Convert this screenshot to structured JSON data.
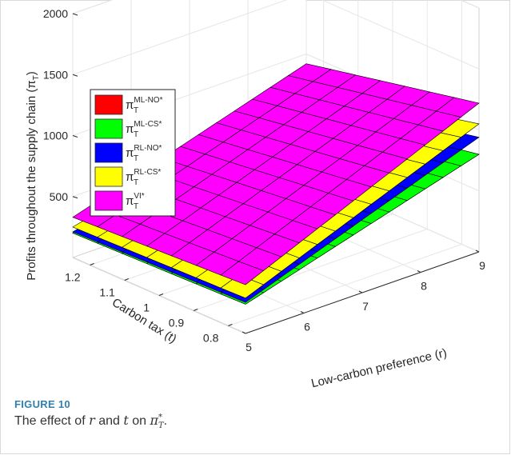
{
  "chart_data": {
    "type": "surface",
    "xlabel": "Low-carbon preference (r)",
    "ylabel": "Carbon tax (t)",
    "zlabel": "Profits throughout the supply chain (π",
    "zlabel_sub": "T",
    "x_ticks": [
      5,
      6,
      7,
      8,
      9
    ],
    "y_ticks": [
      0.8,
      0.9,
      1,
      1.1,
      1.2
    ],
    "z_ticks": [
      500,
      1000,
      1500,
      2000
    ],
    "xlim": [
      5,
      9
    ],
    "ylim": [
      0.75,
      1.25
    ],
    "zlim": [
      0,
      2000
    ],
    "grid": true,
    "legend_position": "top-left",
    "series": [
      {
        "name": "π",
        "sup": "ML-NO*",
        "sub": "T",
        "color": "#ff0000",
        "z_corners": {
          "r5_t1.25": 200,
          "r5_t0.75": 240,
          "r9_t1.25": 530,
          "r9_t0.75": 800
        }
      },
      {
        "name": "π",
        "sup": "ML-CS*",
        "sub": "T",
        "color": "#00ff00",
        "z_corners": {
          "r5_t1.25": 200,
          "r5_t0.75": 240,
          "r9_t1.25": 530,
          "r9_t0.75": 800
        }
      },
      {
        "name": "π",
        "sup": "RL-NO*",
        "sub": "T",
        "color": "#0000ff",
        "z_corners": {
          "r5_t1.25": 210,
          "r5_t0.75": 255,
          "r9_t1.25": 640,
          "r9_t0.75": 940
        }
      },
      {
        "name": "π",
        "sup": "RL-CS*",
        "sub": "T",
        "color": "#ffff00",
        "z_corners": {
          "r5_t1.25": 250,
          "r5_t0.75": 290,
          "r9_t1.25": 720,
          "r9_t0.75": 1050
        }
      },
      {
        "name": "π",
        "sup": "VI*",
        "sub": "T",
        "color": "#ff00ff",
        "z_corners": {
          "r5_t1.25": 330,
          "r5_t0.75": 400,
          "r9_t1.25": 920,
          "r9_t0.75": 1220
        }
      }
    ]
  },
  "caption": {
    "label": "FIGURE 10",
    "text_prefix": "The effect of ",
    "var1": "r",
    "text_mid": " and ",
    "var2": "t",
    "text_mid2": " on ",
    "var3": "π",
    "var3_sup": "*",
    "var3_sub": "T",
    "text_suffix": "."
  }
}
